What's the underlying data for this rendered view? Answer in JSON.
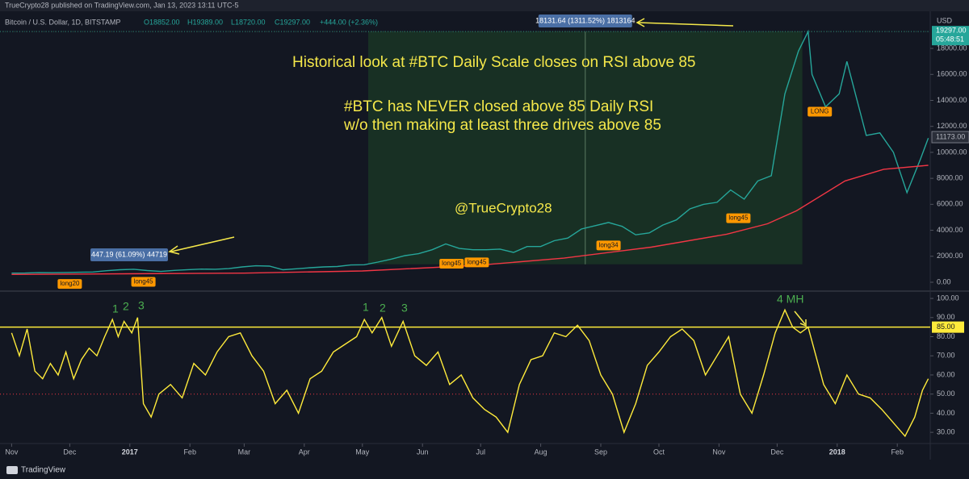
{
  "header": {
    "publisher": "TrueCrypto28 published on TradingView.com, Jan 13, 2023 13:11 UTC-5",
    "symbol": "Bitcoin / U.S. Dollar, 1D, BITSTAMP",
    "open": "O18852.00",
    "high": "H19389.00",
    "low": "L18720.00",
    "close": "C19297.00",
    "change": "+444.00 (+2.36%)",
    "currency": "USD"
  },
  "annotations": [
    "Historical look at #BTC Daily Scale closes on RSI above 85",
    "#BTC has NEVER closed above 85 Daily RSI",
    "w/o then making at least three drives above 85",
    "@TrueCrypto28"
  ],
  "rsi_annotations": [
    "1",
    "2",
    "3",
    "1",
    "2",
    "3",
    "4 MH"
  ],
  "measure_labels": [
    "18131.64 (1311.52%) 1813164",
    "447.19 (61.09%) 44719"
  ],
  "footer": "TradingView",
  "chart_data": [
    {
      "type": "line",
      "xlim": [
        -6,
        474
      ],
      "ylim": [
        -620,
        19990
      ],
      "yticks": [
        {
          "value": 0,
          "label": "0.00"
        },
        {
          "value": 2000,
          "label": "2000.00"
        },
        {
          "value": 4000,
          "label": "4000.00"
        },
        {
          "value": 6000,
          "label": "6000.00"
        },
        {
          "value": 8000,
          "label": "8000.00"
        },
        {
          "value": 10000,
          "label": "10000.00"
        },
        {
          "value": 12000,
          "label": "12000.00"
        },
        {
          "value": 14000,
          "label": "14000.00"
        },
        {
          "value": 16000,
          "label": "16000.00"
        },
        {
          "value": 18000,
          "label": "18000.00"
        }
      ],
      "series": [
        {
          "color": "#26a69a",
          "x": [
            0,
            7,
            14,
            21,
            28,
            35,
            42,
            49,
            56,
            63,
            70,
            77,
            84,
            91,
            98,
            105,
            112,
            119,
            126,
            133,
            140,
            147,
            154,
            161,
            168,
            175,
            182,
            189,
            196,
            203,
            210,
            217,
            224,
            231,
            238,
            245,
            252,
            259,
            266,
            273,
            280,
            287,
            294,
            301,
            308,
            315,
            322,
            329,
            336,
            343,
            350,
            357,
            364,
            371,
            378,
            385,
            392,
            399,
            406,
            411,
            413,
            420,
            427,
            431,
            441,
            448,
            455,
            462,
            469,
            473
          ],
          "values": [
            705,
            710,
            740,
            735,
            750,
            770,
            790,
            890,
            960,
            1000,
            900,
            830,
            915,
            970,
            1010,
            1000,
            1050,
            1180,
            1270,
            1240,
            960,
            1040,
            1120,
            1180,
            1210,
            1330,
            1350,
            1550,
            1780,
            2050,
            2200,
            2500,
            2950,
            2600,
            2500,
            2500,
            2550,
            2300,
            2750,
            2750,
            3200,
            3400,
            4100,
            4350,
            4600,
            4300,
            3650,
            3800,
            4400,
            4800,
            5650,
            6000,
            6150,
            7100,
            6400,
            7800,
            8200,
            14500,
            17800,
            19300,
            16000,
            13500,
            14500,
            17000,
            11300,
            11500,
            10000,
            6900,
            9500,
            11100
          ]
        },
        {
          "color": "#f23645",
          "x": [
            0,
            60,
            120,
            181,
            240,
            285,
            330,
            369,
            390,
            405,
            430,
            450,
            473
          ],
          "values": [
            600,
            650,
            700,
            870,
            1300,
            1860,
            2700,
            3700,
            4500,
            5500,
            7800,
            8700,
            9000
          ]
        }
      ],
      "last_price": {
        "value": 19297,
        "label": "19297.00",
        "countdown": "05:48:51",
        "color": "#26a69a"
      },
      "level": {
        "value": 11173,
        "label": "11173.00"
      },
      "range": {
        "x": [
          184,
          408
        ],
        "y": [
          1380,
          19300
        ],
        "color": "#1b3a25"
      },
      "signals": [
        {
          "label": "long20",
          "x": 30,
          "price": 740
        },
        {
          "label": "long45",
          "x": 68,
          "price": 900
        },
        {
          "label": "long45",
          "x": 227,
          "price": 2300
        },
        {
          "label": "long45",
          "x": 240,
          "price": 2400
        },
        {
          "label": "long34",
          "x": 308,
          "price": 3700
        },
        {
          "label": "long45",
          "x": 375,
          "price": 5800
        },
        {
          "label": "LONG",
          "x": 417,
          "price": 14000
        }
      ]
    },
    {
      "type": "line",
      "xlim": [
        -6,
        474
      ],
      "ylim": [
        25,
        103.4
      ],
      "xticks": [
        {
          "value": 0,
          "label": "Nov"
        },
        {
          "value": 30,
          "label": "Dec"
        },
        {
          "value": 61,
          "label": "2017"
        },
        {
          "value": 92,
          "label": "Feb"
        },
        {
          "value": 120,
          "label": "Mar"
        },
        {
          "value": 151,
          "label": "Apr"
        },
        {
          "value": 181,
          "label": "May"
        },
        {
          "value": 212,
          "label": "Jun"
        },
        {
          "value": 242,
          "label": "Jul"
        },
        {
          "value": 273,
          "label": "Aug"
        },
        {
          "value": 304,
          "label": "Sep"
        },
        {
          "value": 334,
          "label": "Oct"
        },
        {
          "value": 365,
          "label": "Nov"
        },
        {
          "value": 395,
          "label": "Dec"
        },
        {
          "value": 426,
          "label": "2018"
        },
        {
          "value": 457,
          "label": "Feb"
        }
      ],
      "yticks": [
        {
          "value": 30,
          "label": "30.00"
        },
        {
          "value": 40,
          "label": "40.00"
        },
        {
          "value": 50,
          "label": "50.00"
        },
        {
          "value": 60,
          "label": "60.00"
        },
        {
          "value": 70,
          "label": "70.00"
        },
        {
          "value": 80,
          "label": "80.00"
        },
        {
          "value": 90,
          "label": "90.00"
        },
        {
          "value": 100,
          "label": "100.00"
        }
      ],
      "hline": {
        "value": 85,
        "label": "85.00",
        "color": "#ffeb3b"
      },
      "midline": 50,
      "series": [
        {
          "color": "#ffeb3b",
          "x": [
            0,
            4,
            8,
            12,
            16,
            20,
            24,
            28,
            32,
            36,
            40,
            44,
            48,
            52,
            55,
            58,
            62,
            65,
            68,
            72,
            76,
            82,
            88,
            94,
            100,
            106,
            112,
            118,
            124,
            130,
            136,
            142,
            148,
            154,
            160,
            166,
            172,
            178,
            182,
            186,
            191,
            196,
            202,
            208,
            214,
            220,
            226,
            232,
            238,
            244,
            250,
            256,
            262,
            268,
            274,
            280,
            286,
            292,
            298,
            304,
            310,
            316,
            322,
            328,
            334,
            340,
            346,
            352,
            358,
            364,
            370,
            376,
            382,
            388,
            394,
            399,
            403,
            407,
            411,
            415,
            419,
            425,
            431,
            437,
            443,
            449,
            455,
            461,
            466,
            470,
            473
          ],
          "values": [
            82,
            70,
            84,
            62,
            58,
            66,
            60,
            72,
            58,
            68,
            74,
            70,
            80,
            89,
            80,
            88,
            82,
            90,
            45,
            38,
            50,
            55,
            48,
            66,
            60,
            72,
            80,
            82,
            70,
            62,
            45,
            52,
            40,
            58,
            62,
            72,
            76,
            80,
            89,
            82,
            90,
            75,
            88,
            70,
            65,
            72,
            55,
            60,
            48,
            42,
            38,
            30,
            55,
            68,
            70,
            82,
            80,
            86,
            78,
            60,
            50,
            30,
            45,
            65,
            72,
            80,
            84,
            78,
            60,
            70,
            80,
            50,
            40,
            60,
            82,
            94,
            85,
            82,
            85,
            70,
            55,
            45,
            60,
            50,
            48,
            42,
            35,
            28,
            38,
            52,
            58
          ]
        }
      ]
    }
  ]
}
